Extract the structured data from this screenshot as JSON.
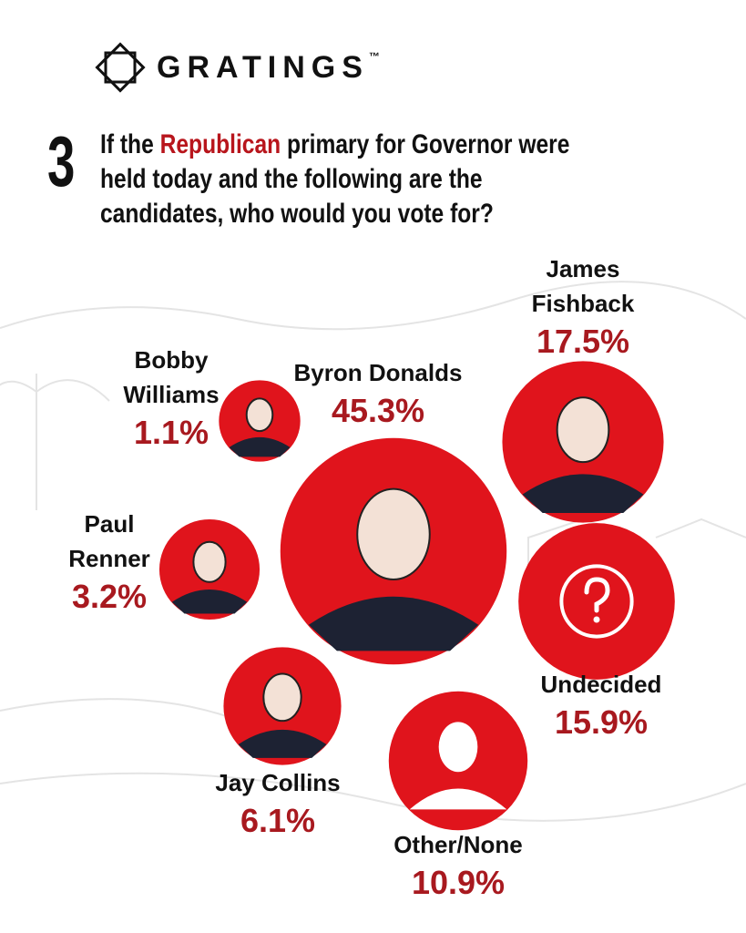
{
  "header": {
    "brand": "GRATINGS",
    "trademark": "™"
  },
  "chart_data": {
    "type": "bubble",
    "question_number": "3",
    "title_parts": [
      "If the",
      "Republican",
      "primary for Governor were held today and the following are the candidates, who would you vote for?"
    ],
    "categories": [
      "Byron Donalds",
      "James Fishback",
      "Undecided",
      "Other/None",
      "Jay Collins",
      "Paul Renner",
      "Bobby Williams"
    ],
    "values": [
      45.3,
      17.5,
      15.9,
      10.9,
      6.1,
      3.2,
      1.1
    ],
    "value_labels": [
      "45.3%",
      "17.5%",
      "15.9%",
      "10.9%",
      "6.1%",
      "3.2%",
      "1.1%"
    ],
    "color": "#e0141c",
    "label_color": "#a8191f"
  }
}
